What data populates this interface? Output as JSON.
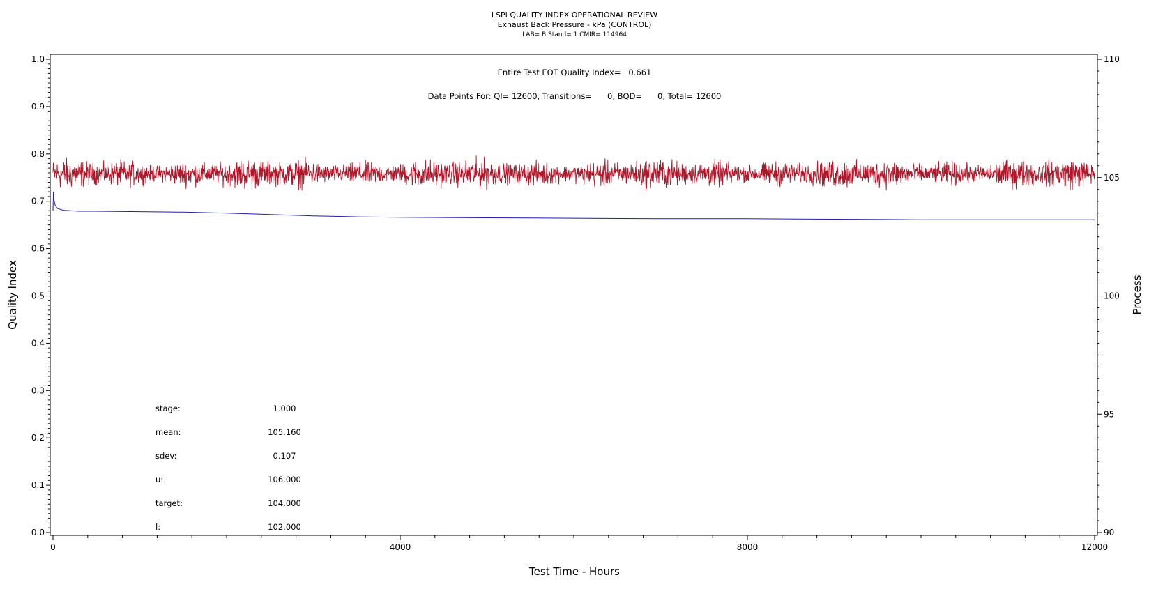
{
  "chart_data": {
    "type": "line",
    "title": "LSPI QUALITY INDEX OPERATIONAL REVIEW",
    "subtitle": "Exhaust Back Pressure - kPa (CONTROL)",
    "subtitle2": "LAB= B Stand= 1 CMIR= 114964",
    "xlabel": "Test Time - Hours",
    "ylabel": "Quality Index",
    "y2label": "Process",
    "xlim": [
      0,
      12000
    ],
    "ylim": [
      0.0,
      1.0
    ],
    "y2lim": [
      90,
      110
    ],
    "x_ticks": [
      "0",
      "4000",
      "8000",
      "12000"
    ],
    "y_ticks": [
      "0.0",
      "0.1",
      "0.2",
      "0.3",
      "0.4",
      "0.5",
      "0.6",
      "0.7",
      "0.8",
      "0.9",
      "1.0"
    ],
    "y2_ticks": [
      "90",
      "95",
      "100",
      "105",
      "110"
    ],
    "annotations": {
      "qi_line": "Entire Test EOT Quality Index=   0.661",
      "points_line": "Data Points For: QI= 12600, Transitions=      0, BQD=      0, Total= 12600"
    },
    "stats": [
      {
        "label": "stage:",
        "value": "1.000"
      },
      {
        "label": "mean:",
        "value": "105.160"
      },
      {
        "label": "sdev:",
        "value": "0.107"
      },
      {
        "label": "u:",
        "value": "106.000"
      },
      {
        "label": "target:",
        "value": "104.000"
      },
      {
        "label": "l:",
        "value": "102.000"
      }
    ],
    "series": [
      {
        "axis": "right",
        "color": "#b0172a",
        "mean": 105.16,
        "sdev": 0.107,
        "x": [
          0,
          12000
        ]
      },
      {
        "axis": "left",
        "color": "#1f1fb0",
        "x": [
          0,
          5,
          10,
          20,
          30,
          50,
          80,
          120,
          200,
          300,
          500,
          1000,
          1500,
          2000,
          2500,
          3000,
          3500,
          4000,
          5000,
          6000,
          7000,
          8000,
          9000,
          10000,
          11000,
          12000
        ],
        "y": [
          0.68,
          0.72,
          0.705,
          0.695,
          0.69,
          0.685,
          0.683,
          0.681,
          0.68,
          0.679,
          0.679,
          0.678,
          0.677,
          0.675,
          0.672,
          0.669,
          0.667,
          0.666,
          0.665,
          0.664,
          0.663,
          0.663,
          0.662,
          0.661,
          0.661,
          0.661
        ]
      }
    ]
  }
}
